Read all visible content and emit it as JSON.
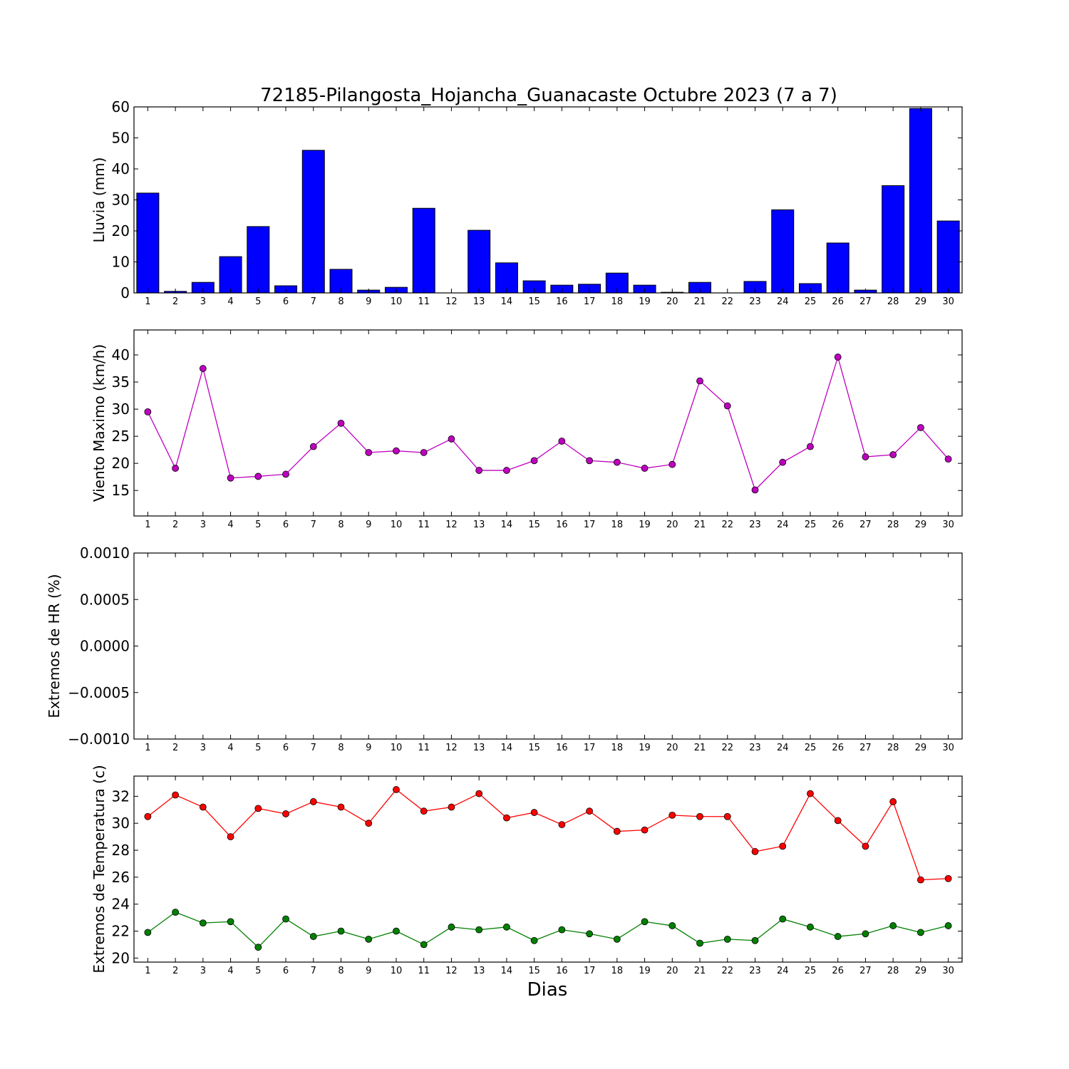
{
  "title": "72185-Pilangosta_Hojancha_Guanacaste Octubre 2023  (7 a 7)",
  "xlabel": "Dias",
  "days": [
    1,
    2,
    3,
    4,
    5,
    6,
    7,
    8,
    9,
    10,
    11,
    12,
    13,
    14,
    15,
    16,
    17,
    18,
    19,
    20,
    21,
    22,
    23,
    24,
    25,
    26,
    27,
    28,
    29,
    30
  ],
  "chart_data": [
    {
      "type": "bar",
      "ylabel": "Lluvia (mm)",
      "ylim": [
        0,
        60
      ],
      "yticks": [
        0,
        10,
        20,
        30,
        40,
        50,
        60
      ],
      "ytick_labels": [
        "0",
        "10",
        "20",
        "30",
        "40",
        "50",
        "60"
      ],
      "x": [
        1,
        2,
        3,
        4,
        5,
        6,
        7,
        8,
        9,
        10,
        11,
        12,
        13,
        14,
        15,
        16,
        17,
        18,
        19,
        20,
        21,
        22,
        23,
        24,
        25,
        26,
        27,
        28,
        29,
        30
      ],
      "values": [
        32.2,
        0.5,
        3.4,
        11.7,
        21.4,
        2.3,
        46.0,
        7.6,
        0.9,
        1.8,
        27.3,
        0,
        20.2,
        9.7,
        3.9,
        2.5,
        2.8,
        6.4,
        2.5,
        0.2,
        3.4,
        0,
        3.7,
        26.8,
        3.0,
        16.1,
        0.9,
        34.6,
        59.5,
        23.2
      ],
      "color": "#0000ff"
    },
    {
      "type": "line",
      "ylabel": "Viento Maximo (km/h)",
      "ylim": [
        10.3,
        44.6
      ],
      "yticks": [
        15,
        20,
        25,
        30,
        35,
        40
      ],
      "ytick_labels": [
        "15",
        "20",
        "25",
        "30",
        "35",
        "40"
      ],
      "x": [
        1,
        2,
        3,
        4,
        5,
        6,
        7,
        8,
        9,
        10,
        11,
        12,
        13,
        14,
        15,
        16,
        17,
        18,
        19,
        20,
        21,
        22,
        23,
        24,
        25,
        26,
        27,
        28,
        29,
        30
      ],
      "series": [
        {
          "values": [
            29.5,
            19.1,
            37.5,
            17.3,
            17.6,
            18.0,
            23.1,
            27.4,
            22.0,
            22.3,
            22.0,
            24.5,
            18.7,
            18.7,
            20.5,
            24.1,
            20.5,
            20.2,
            19.1,
            19.8,
            35.2,
            30.6,
            15.1,
            20.2,
            23.1,
            39.6,
            21.2,
            21.6,
            26.6,
            20.8
          ],
          "color": "#bf00bf"
        }
      ]
    },
    {
      "type": "line",
      "ylabel": "Extremos de HR (%)",
      "ylim": [
        -0.001,
        0.001
      ],
      "yticks": [
        -0.001,
        -0.0005,
        0,
        0.0005,
        0.001
      ],
      "ytick_labels": [
        "−0.0010",
        "−0.0005",
        "0.0000",
        "0.0005",
        "0.0010"
      ],
      "x": [
        1,
        2,
        3,
        4,
        5,
        6,
        7,
        8,
        9,
        10,
        11,
        12,
        13,
        14,
        15,
        16,
        17,
        18,
        19,
        20,
        21,
        22,
        23,
        24,
        25,
        26,
        27,
        28,
        29,
        30
      ],
      "series": []
    },
    {
      "type": "line",
      "ylabel": "Extremos de Temperatura (c)",
      "ylim": [
        19.7,
        33.5
      ],
      "yticks": [
        20,
        22,
        24,
        26,
        28,
        30,
        32
      ],
      "ytick_labels": [
        "20",
        "22",
        "24",
        "26",
        "28",
        "30",
        "32"
      ],
      "x": [
        1,
        2,
        3,
        4,
        5,
        6,
        7,
        8,
        9,
        10,
        11,
        12,
        13,
        14,
        15,
        16,
        17,
        18,
        19,
        20,
        21,
        22,
        23,
        24,
        25,
        26,
        27,
        28,
        29,
        30
      ],
      "series": [
        {
          "values": [
            30.5,
            32.1,
            31.2,
            29.0,
            31.1,
            30.7,
            31.6,
            31.2,
            30.0,
            32.5,
            30.9,
            31.2,
            32.2,
            30.4,
            30.8,
            29.9,
            30.9,
            29.4,
            29.5,
            30.6,
            30.5,
            30.5,
            27.9,
            28.3,
            32.2,
            30.2,
            28.3,
            31.6,
            25.8,
            25.9
          ],
          "color": "#ff0000"
        },
        {
          "values": [
            21.9,
            23.4,
            22.6,
            22.7,
            20.8,
            22.9,
            21.6,
            22.0,
            21.4,
            22.0,
            21.0,
            22.3,
            22.1,
            22.3,
            21.3,
            22.1,
            21.8,
            21.4,
            22.7,
            22.4,
            21.1,
            21.4,
            21.3,
            22.9,
            22.3,
            21.6,
            21.8,
            22.4,
            21.9,
            22.4
          ],
          "color": "#008000"
        }
      ]
    }
  ]
}
